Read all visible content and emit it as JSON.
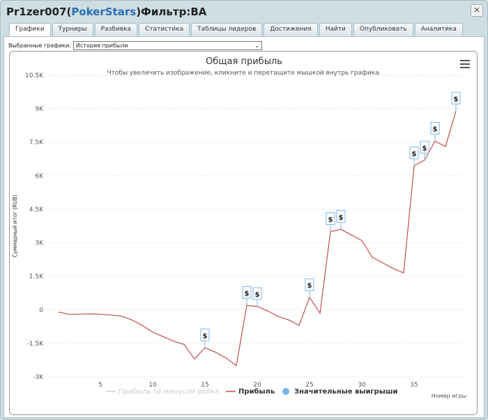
{
  "window": {
    "title_user": "Pr1zer007",
    "title_open": " (",
    "title_site": "PokerStars",
    "title_close": ")",
    "title_filter": " Фильтр:BA",
    "close_label": "×"
  },
  "tabs": [
    {
      "label": "Графики"
    },
    {
      "label": "Турниры"
    },
    {
      "label": "Разбивка"
    },
    {
      "label": "Статистика"
    },
    {
      "label": "Таблицы лидеров"
    },
    {
      "label": "Достижения"
    },
    {
      "label": "Найти"
    },
    {
      "label": "Опубликовать"
    },
    {
      "label": "Аналитика"
    }
  ],
  "selector": {
    "label": "Выбранные графики:",
    "value": "История прибыли",
    "chevron": "⌄"
  },
  "chart_data": {
    "type": "line",
    "title": "Общая прибыль",
    "subtitle": "Чтобы увеличить изображение, кликните и перетащите мышкой внутрь графика.",
    "ylabel": "Суммарный итог (RUB)",
    "xlabel": "Номер игры",
    "ylim": [
      -3000,
      10500
    ],
    "yticks": [
      -3000,
      -1500,
      0,
      1500,
      3000,
      4500,
      6000,
      7500,
      9000,
      10500
    ],
    "ytick_labels": [
      "-3K",
      "-1.5K",
      "0",
      "1.5K",
      "3K",
      "4.5K",
      "6K",
      "7.5K",
      "9K",
      "10.5K"
    ],
    "xlim": [
      0,
      40
    ],
    "xticks": [
      5,
      10,
      15,
      20,
      25,
      30,
      35
    ],
    "xtick_labels": [
      "5",
      "10",
      "15",
      "20",
      "25",
      "30",
      "35"
    ],
    "grid": "horizontal",
    "legend_position": "bottom",
    "line_color": "#c0504d",
    "series": [
      {
        "name": "Прибыль",
        "x": [
          1,
          2,
          3,
          4,
          5,
          6,
          7,
          8,
          9,
          10,
          11,
          12,
          13,
          14,
          15,
          16,
          17,
          18,
          19,
          20,
          21,
          22,
          23,
          24,
          25,
          26,
          27,
          28,
          29,
          30,
          31,
          32,
          33,
          34,
          35,
          36,
          37,
          38,
          39
        ],
        "y": [
          -100,
          -200,
          -200,
          -180,
          -200,
          -230,
          -280,
          -450,
          -700,
          -1000,
          -1200,
          -1400,
          -1550,
          -2200,
          -1700,
          -1900,
          -2150,
          -2500,
          200,
          150,
          -50,
          -300,
          -450,
          -700,
          550,
          -150,
          3500,
          3600,
          3350,
          3100,
          2350,
          2100,
          1850,
          1650,
          6450,
          6700,
          7550,
          7300,
          8900
        ]
      }
    ],
    "big_wins": {
      "name": "Значительные выигрыши",
      "x": [
        15,
        19,
        20,
        25,
        27,
        28,
        35,
        36,
        37,
        39
      ],
      "symbol": "$"
    },
    "legend": [
      {
        "label": "Прибыль за минусом рейка",
        "color": "#cccccc",
        "kind": "line",
        "dimmed": true
      },
      {
        "label": "Прибыль",
        "color": "#c0504d",
        "kind": "line",
        "dimmed": false
      },
      {
        "label": "Значительные выигрыши",
        "color": "#7cb5ec",
        "kind": "dot",
        "dimmed": false
      }
    ]
  }
}
